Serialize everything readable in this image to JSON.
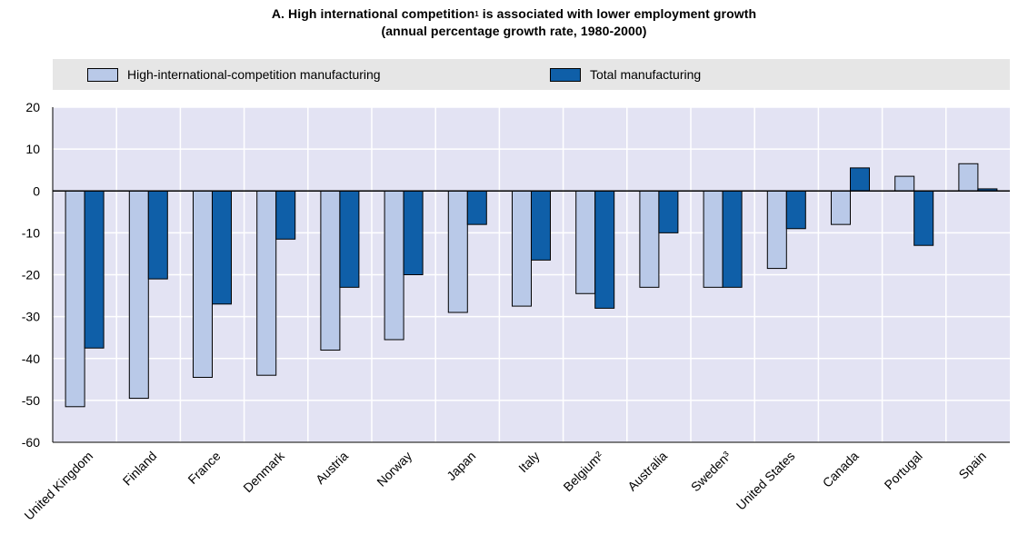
{
  "title": {
    "line1_prefix": "A. High international competition",
    "line1_sup": "1",
    "line1_suffix": " is associated with lower employment growth",
    "line2": "(annual percentage growth rate, 1980-2000)"
  },
  "legend": [
    {
      "label": "High-international-competition manufacturing",
      "color": "#b9c9e8"
    },
    {
      "label": "Total manufacturing",
      "color": "#0f5fa8"
    }
  ],
  "colors": {
    "plot_bg": "#e3e3f3",
    "grid": "#ffffff",
    "high": "#b9c9e8",
    "total": "#0f5fa8"
  },
  "chart_data": {
    "type": "bar",
    "categories": [
      "United Kingdom",
      "Finland",
      "France",
      "Denmark",
      "Austria",
      "Norway",
      "Japan",
      "Italy",
      "Belgium²",
      "Australia",
      "Sweden³",
      "United States",
      "Canada",
      "Portugal",
      "Spain"
    ],
    "series": [
      {
        "name": "High-international-competition manufacturing",
        "values": [
          -51.5,
          -49.5,
          -44.5,
          -44,
          -38,
          -35.5,
          -29,
          -27.5,
          -24.5,
          -23,
          -23,
          -18.5,
          -8,
          3.5,
          6.5
        ]
      },
      {
        "name": "Total manufacturing",
        "values": [
          -37.5,
          -21,
          -27,
          -11.5,
          -23,
          -20,
          -8,
          -16.5,
          -28,
          -10,
          -23,
          -9,
          5.5,
          -13,
          0.5
        ]
      }
    ],
    "ylim": [
      -60,
      20
    ],
    "yticks": [
      20,
      10,
      0,
      -10,
      -20,
      -30,
      -40,
      -50,
      -60
    ],
    "grid": true,
    "legend_position": "top"
  }
}
